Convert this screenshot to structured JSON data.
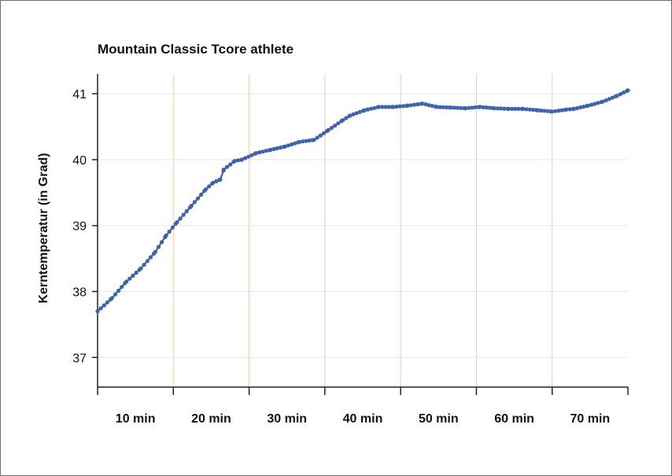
{
  "chart_data": {
    "type": "line",
    "title": "Mountain Classic Tcore athlete",
    "ylabel": "Kerntemperatur (in Grad)",
    "xlabel": "",
    "x_tick_labels": [
      "10 min",
      "20 min",
      "30 min",
      "40 min",
      "50 min",
      "60 min",
      "70 min"
    ],
    "y_ticks": [
      37,
      38,
      39,
      40,
      41
    ],
    "y_tick_labels": [
      "37",
      "38",
      "39",
      "40",
      "41"
    ],
    "ylim": [
      36.55,
      41.3
    ],
    "xlim": [
      0,
      73.5
    ],
    "grid": {
      "horizontal": true,
      "vertical": true
    },
    "series_color": "#3f63b0",
    "vgrid_color": "#e9cdb2",
    "hgrid_color": "#e6e6e6",
    "series": [
      {
        "x": [
          0,
          2,
          4,
          6,
          8,
          9.5,
          11,
          13,
          15,
          16,
          17,
          17.5,
          19,
          20,
          22,
          24,
          26,
          28,
          30,
          32,
          34,
          35,
          37,
          39,
          41,
          43,
          45,
          47,
          49,
          51,
          53,
          55,
          57,
          59,
          61,
          63,
          65,
          66,
          68,
          70,
          72,
          73.5
        ],
        "y": [
          37.7,
          37.9,
          38.15,
          38.35,
          38.6,
          38.85,
          39.05,
          39.3,
          39.55,
          39.65,
          39.7,
          39.85,
          39.98,
          40.0,
          40.1,
          40.15,
          40.2,
          40.27,
          40.3,
          40.45,
          40.6,
          40.67,
          40.75,
          40.8,
          40.8,
          40.82,
          40.85,
          40.8,
          40.79,
          40.78,
          40.8,
          40.78,
          40.77,
          40.77,
          40.75,
          40.73,
          40.76,
          40.77,
          40.82,
          40.88,
          40.97,
          41.05
        ]
      }
    ]
  }
}
